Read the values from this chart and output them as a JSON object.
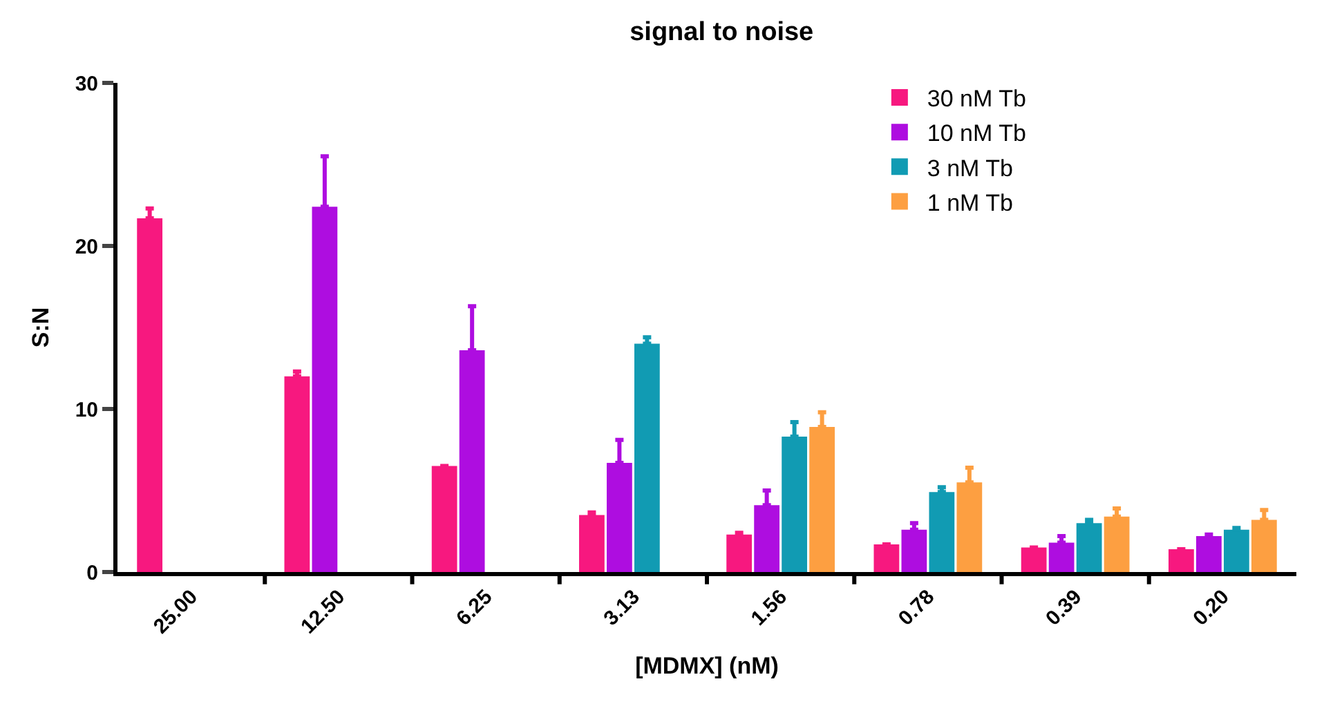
{
  "chart_data": {
    "type": "bar",
    "title": "signal to noise",
    "xlabel": "[MDMX] (nM)",
    "ylabel": "S:N",
    "categories": [
      "25.00",
      "12.50",
      "6.25",
      "3.13",
      "1.56",
      "0.78",
      "0.39",
      "0.20"
    ],
    "series": [
      {
        "name": "30 nM Tb",
        "color": "#f7187f",
        "values": [
          21.7,
          12.0,
          6.5,
          3.5,
          2.3,
          1.7,
          1.5,
          1.4
        ],
        "errors": [
          [
            21.7,
            22.3
          ],
          [
            12.0,
            12.3
          ],
          null,
          [
            3.5,
            3.65
          ],
          [
            2.3,
            2.4
          ],
          null,
          null,
          null
        ]
      },
      {
        "name": "10 nM Tb",
        "color": "#ae0de0",
        "values": [
          null,
          22.4,
          13.6,
          6.7,
          4.1,
          2.6,
          1.8,
          2.2
        ],
        "errors": [
          null,
          [
            22.4,
            25.5
          ],
          [
            13.6,
            16.3
          ],
          [
            6.7,
            8.1
          ],
          [
            4.1,
            5.0
          ],
          [
            2.6,
            3.0
          ],
          [
            1.8,
            2.2
          ],
          [
            2.2,
            2.3
          ]
        ]
      },
      {
        "name": "3 nM Tb",
        "color": "#119bb3",
        "values": [
          null,
          null,
          null,
          14.0,
          8.3,
          4.9,
          3.0,
          2.6
        ],
        "errors": [
          null,
          null,
          null,
          [
            14.0,
            14.4
          ],
          [
            8.3,
            9.2
          ],
          [
            4.9,
            5.2
          ],
          [
            3.0,
            3.2
          ],
          [
            2.6,
            2.7
          ]
        ]
      },
      {
        "name": "1 nM Tb",
        "color": "#fd9f41",
        "values": [
          null,
          null,
          null,
          null,
          8.9,
          5.5,
          3.4,
          3.2
        ],
        "errors": [
          null,
          null,
          null,
          null,
          [
            8.9,
            9.8
          ],
          [
            5.5,
            6.4
          ],
          [
            3.4,
            3.9
          ],
          [
            3.2,
            3.8
          ]
        ]
      }
    ],
    "ylim": [
      0,
      30
    ],
    "yticks": [
      0,
      10,
      20,
      30
    ],
    "legend": "top right"
  }
}
